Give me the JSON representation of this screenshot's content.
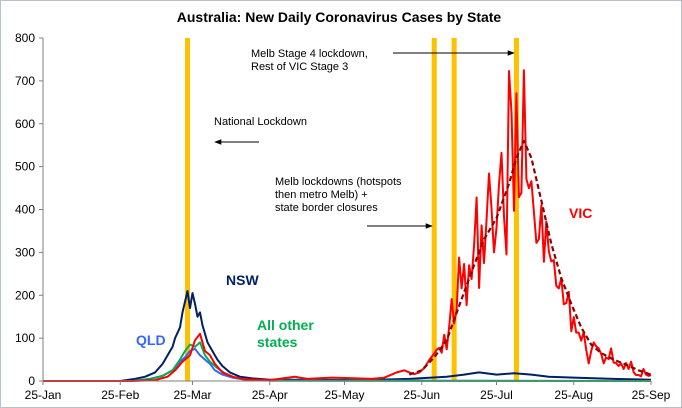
{
  "chart_data": {
    "type": "line",
    "title": "Australia: New Daily Coronavirus Cases by State",
    "xlabel": "",
    "ylabel": "",
    "x_range": [
      "2020-01-25",
      "2020-09-25"
    ],
    "ylim": [
      0,
      800
    ],
    "y_ticks": [
      "0",
      "100",
      "200",
      "300",
      "400",
      "500",
      "600",
      "700",
      "800"
    ],
    "x_ticks": [
      {
        "label": "25-Jan",
        "date": "2020-01-25"
      },
      {
        "label": "25-Feb",
        "date": "2020-02-25"
      },
      {
        "label": "25-Mar",
        "date": "2020-03-25"
      },
      {
        "label": "25-Apr",
        "date": "2020-04-25"
      },
      {
        "label": "25-May",
        "date": "2020-05-25"
      },
      {
        "label": "25-Jun",
        "date": "2020-06-25"
      },
      {
        "label": "25-Jul",
        "date": "2020-07-25"
      },
      {
        "label": "25-Aug",
        "date": "2020-08-25"
      },
      {
        "label": "25-Sep",
        "date": "2020-09-25"
      }
    ],
    "grid": false,
    "legend": "direct labels",
    "event_lines": [
      {
        "date": "2020-03-23",
        "color": "#ffc000"
      },
      {
        "date": "2020-06-30",
        "color": "#ffc000"
      },
      {
        "date": "2020-07-08",
        "color": "#ffc000"
      },
      {
        "date": "2020-08-02",
        "color": "#ffc000"
      }
    ],
    "annotations": [
      {
        "lines": [
          "Melb Stage 4 lockdown,",
          "Rest of VIC Stage 3"
        ]
      },
      {
        "lines": [
          "National Lockdown"
        ]
      },
      {
        "lines": [
          "Melb lockdowns (hotspots",
          "then metro Melb) +",
          "state border closures"
        ]
      }
    ],
    "series": [
      {
        "name": "VIC",
        "color": "#ff0000",
        "points": [
          [
            "2020-01-25",
            0
          ],
          [
            "2020-03-01",
            0
          ],
          [
            "2020-03-10",
            2
          ],
          [
            "2020-03-15",
            10
          ],
          [
            "2020-03-18",
            25
          ],
          [
            "2020-03-21",
            45
          ],
          [
            "2020-03-24",
            60
          ],
          [
            "2020-03-26",
            95
          ],
          [
            "2020-03-28",
            110
          ],
          [
            "2020-03-30",
            70
          ],
          [
            "2020-04-01",
            60
          ],
          [
            "2020-04-03",
            40
          ],
          [
            "2020-04-06",
            20
          ],
          [
            "2020-04-10",
            10
          ],
          [
            "2020-04-15",
            4
          ],
          [
            "2020-04-25",
            2
          ],
          [
            "2020-05-05",
            10
          ],
          [
            "2020-05-10",
            5
          ],
          [
            "2020-05-20",
            8
          ],
          [
            "2020-05-30",
            6
          ],
          [
            "2020-06-05",
            5
          ],
          [
            "2020-06-10",
            8
          ],
          [
            "2020-06-15",
            20
          ],
          [
            "2020-06-18",
            25
          ],
          [
            "2020-06-20",
            20
          ],
          [
            "2020-06-22",
            16
          ],
          [
            "2020-06-24",
            20
          ],
          [
            "2020-06-26",
            30
          ],
          [
            "2020-06-28",
            49
          ],
          [
            "2020-06-30",
            64
          ],
          [
            "2020-07-01",
            73
          ],
          [
            "2020-07-02",
            77
          ],
          [
            "2020-07-03",
            66
          ],
          [
            "2020-07-04",
            108
          ],
          [
            "2020-07-05",
            74
          ],
          [
            "2020-07-06",
            127
          ],
          [
            "2020-07-07",
            191
          ],
          [
            "2020-07-08",
            134
          ],
          [
            "2020-07-09",
            165
          ],
          [
            "2020-07-10",
            288
          ],
          [
            "2020-07-11",
            216
          ],
          [
            "2020-07-12",
            273
          ],
          [
            "2020-07-13",
            177
          ],
          [
            "2020-07-14",
            270
          ],
          [
            "2020-07-15",
            238
          ],
          [
            "2020-07-16",
            317
          ],
          [
            "2020-07-17",
            428
          ],
          [
            "2020-07-18",
            217
          ],
          [
            "2020-07-19",
            363
          ],
          [
            "2020-07-20",
            275
          ],
          [
            "2020-07-21",
            374
          ],
          [
            "2020-07-22",
            484
          ],
          [
            "2020-07-23",
            403
          ],
          [
            "2020-07-24",
            300
          ],
          [
            "2020-07-25",
            357
          ],
          [
            "2020-07-26",
            459
          ],
          [
            "2020-07-27",
            532
          ],
          [
            "2020-07-28",
            384
          ],
          [
            "2020-07-29",
            295
          ],
          [
            "2020-07-30",
            723
          ],
          [
            "2020-07-31",
            627
          ],
          [
            "2020-08-01",
            397
          ],
          [
            "2020-08-02",
            671
          ],
          [
            "2020-08-03",
            429
          ],
          [
            "2020-08-04",
            439
          ],
          [
            "2020-08-05",
            725
          ],
          [
            "2020-08-06",
            471
          ],
          [
            "2020-08-07",
            450
          ],
          [
            "2020-08-08",
            466
          ],
          [
            "2020-08-09",
            394
          ],
          [
            "2020-08-10",
            322
          ],
          [
            "2020-08-11",
            331
          ],
          [
            "2020-08-12",
            410
          ],
          [
            "2020-08-13",
            278
          ],
          [
            "2020-08-14",
            372
          ],
          [
            "2020-08-15",
            303
          ],
          [
            "2020-08-16",
            279
          ],
          [
            "2020-08-17",
            282
          ],
          [
            "2020-08-18",
            222
          ],
          [
            "2020-08-19",
            216
          ],
          [
            "2020-08-20",
            240
          ],
          [
            "2020-08-21",
            179
          ],
          [
            "2020-08-22",
            182
          ],
          [
            "2020-08-23",
            208
          ],
          [
            "2020-08-24",
            116
          ],
          [
            "2020-08-25",
            149
          ],
          [
            "2020-08-26",
            113
          ],
          [
            "2020-08-27",
            113
          ],
          [
            "2020-08-28",
            94
          ],
          [
            "2020-08-29",
            114
          ],
          [
            "2020-08-30",
            73
          ],
          [
            "2020-08-31",
            41
          ],
          [
            "2020-09-01",
            70
          ],
          [
            "2020-09-02",
            90
          ],
          [
            "2020-09-03",
            81
          ],
          [
            "2020-09-04",
            76
          ],
          [
            "2020-09-05",
            63
          ],
          [
            "2020-09-06",
            41
          ],
          [
            "2020-09-07",
            55
          ],
          [
            "2020-09-08",
            51
          ],
          [
            "2020-09-09",
            76
          ],
          [
            "2020-09-10",
            43
          ],
          [
            "2020-09-11",
            42
          ],
          [
            "2020-09-12",
            35
          ],
          [
            "2020-09-13",
            41
          ],
          [
            "2020-09-14",
            28
          ],
          [
            "2020-09-15",
            42
          ],
          [
            "2020-09-16",
            28
          ],
          [
            "2020-09-17",
            45
          ],
          [
            "2020-09-18",
            21
          ],
          [
            "2020-09-19",
            14
          ],
          [
            "2020-09-20",
            14
          ],
          [
            "2020-09-21",
            11
          ],
          [
            "2020-09-22",
            28
          ],
          [
            "2020-09-23",
            15
          ],
          [
            "2020-09-24",
            12
          ],
          [
            "2020-09-25",
            14
          ]
        ]
      },
      {
        "name": "VIC trend",
        "color": "#8b0000",
        "dashed": true,
        "points": [
          [
            "2020-06-20",
            15
          ],
          [
            "2020-06-25",
            25
          ],
          [
            "2020-06-30",
            55
          ],
          [
            "2020-07-05",
            95
          ],
          [
            "2020-07-10",
            175
          ],
          [
            "2020-07-15",
            255
          ],
          [
            "2020-07-20",
            330
          ],
          [
            "2020-07-25",
            380
          ],
          [
            "2020-07-30",
            460
          ],
          [
            "2020-08-02",
            520
          ],
          [
            "2020-08-05",
            560
          ],
          [
            "2020-08-08",
            520
          ],
          [
            "2020-08-12",
            420
          ],
          [
            "2020-08-16",
            320
          ],
          [
            "2020-08-20",
            240
          ],
          [
            "2020-08-24",
            180
          ],
          [
            "2020-08-28",
            125
          ],
          [
            "2020-09-01",
            85
          ],
          [
            "2020-09-05",
            65
          ],
          [
            "2020-09-10",
            50
          ],
          [
            "2020-09-15",
            38
          ],
          [
            "2020-09-20",
            25
          ],
          [
            "2020-09-25",
            15
          ]
        ]
      },
      {
        "name": "NSW",
        "color": "#001f66",
        "points": [
          [
            "2020-01-25",
            0
          ],
          [
            "2020-02-25",
            0
          ],
          [
            "2020-03-02",
            5
          ],
          [
            "2020-03-06",
            10
          ],
          [
            "2020-03-10",
            20
          ],
          [
            "2020-03-13",
            40
          ],
          [
            "2020-03-15",
            60
          ],
          [
            "2020-03-17",
            80
          ],
          [
            "2020-03-18",
            100
          ],
          [
            "2020-03-20",
            125
          ],
          [
            "2020-03-21",
            160
          ],
          [
            "2020-03-22",
            185
          ],
          [
            "2020-03-23",
            210
          ],
          [
            "2020-03-24",
            170
          ],
          [
            "2020-03-25",
            205
          ],
          [
            "2020-03-26",
            180
          ],
          [
            "2020-03-27",
            150
          ],
          [
            "2020-03-28",
            160
          ],
          [
            "2020-03-29",
            130
          ],
          [
            "2020-03-30",
            110
          ],
          [
            "2020-03-31",
            90
          ],
          [
            "2020-04-02",
            70
          ],
          [
            "2020-04-04",
            50
          ],
          [
            "2020-04-06",
            35
          ],
          [
            "2020-04-09",
            20
          ],
          [
            "2020-04-13",
            10
          ],
          [
            "2020-04-18",
            6
          ],
          [
            "2020-04-25",
            3
          ],
          [
            "2020-05-10",
            3
          ],
          [
            "2020-06-01",
            2
          ],
          [
            "2020-06-20",
            5
          ],
          [
            "2020-07-05",
            10
          ],
          [
            "2020-07-12",
            15
          ],
          [
            "2020-07-18",
            20
          ],
          [
            "2020-07-25",
            15
          ],
          [
            "2020-08-01",
            18
          ],
          [
            "2020-08-08",
            15
          ],
          [
            "2020-08-15",
            10
          ],
          [
            "2020-08-25",
            8
          ],
          [
            "2020-09-10",
            5
          ],
          [
            "2020-09-25",
            3
          ]
        ]
      },
      {
        "name": "QLD",
        "color": "#3366ff",
        "points": [
          [
            "2020-01-25",
            0
          ],
          [
            "2020-03-01",
            0
          ],
          [
            "2020-03-08",
            5
          ],
          [
            "2020-03-13",
            12
          ],
          [
            "2020-03-17",
            25
          ],
          [
            "2020-03-20",
            45
          ],
          [
            "2020-03-22",
            55
          ],
          [
            "2020-03-24",
            70
          ],
          [
            "2020-03-26",
            75
          ],
          [
            "2020-03-28",
            60
          ],
          [
            "2020-03-30",
            50
          ],
          [
            "2020-04-01",
            40
          ],
          [
            "2020-04-03",
            25
          ],
          [
            "2020-04-06",
            15
          ],
          [
            "2020-04-10",
            8
          ],
          [
            "2020-04-15",
            3
          ],
          [
            "2020-04-25",
            1
          ],
          [
            "2020-09-25",
            0
          ]
        ]
      },
      {
        "name": "All other states",
        "color": "#00b050",
        "points": [
          [
            "2020-01-25",
            0
          ],
          [
            "2020-03-01",
            0
          ],
          [
            "2020-03-08",
            5
          ],
          [
            "2020-03-13",
            12
          ],
          [
            "2020-03-17",
            25
          ],
          [
            "2020-03-20",
            50
          ],
          [
            "2020-03-22",
            70
          ],
          [
            "2020-03-24",
            85
          ],
          [
            "2020-03-26",
            80
          ],
          [
            "2020-03-28",
            90
          ],
          [
            "2020-03-30",
            60
          ],
          [
            "2020-04-01",
            45
          ],
          [
            "2020-04-04",
            30
          ],
          [
            "2020-04-07",
            18
          ],
          [
            "2020-04-11",
            8
          ],
          [
            "2020-04-16",
            3
          ],
          [
            "2020-04-25",
            1
          ],
          [
            "2020-09-25",
            0
          ]
        ]
      }
    ],
    "direct_labels": [
      {
        "lines": [
          "VIC"
        ],
        "color": "#ff0000"
      },
      {
        "lines": [
          "NSW"
        ],
        "color": "#001f66"
      },
      {
        "lines": [
          "QLD"
        ],
        "color": "#3366ff"
      },
      {
        "lines": [
          "All other",
          "states"
        ],
        "color": "#00b050"
      }
    ]
  }
}
